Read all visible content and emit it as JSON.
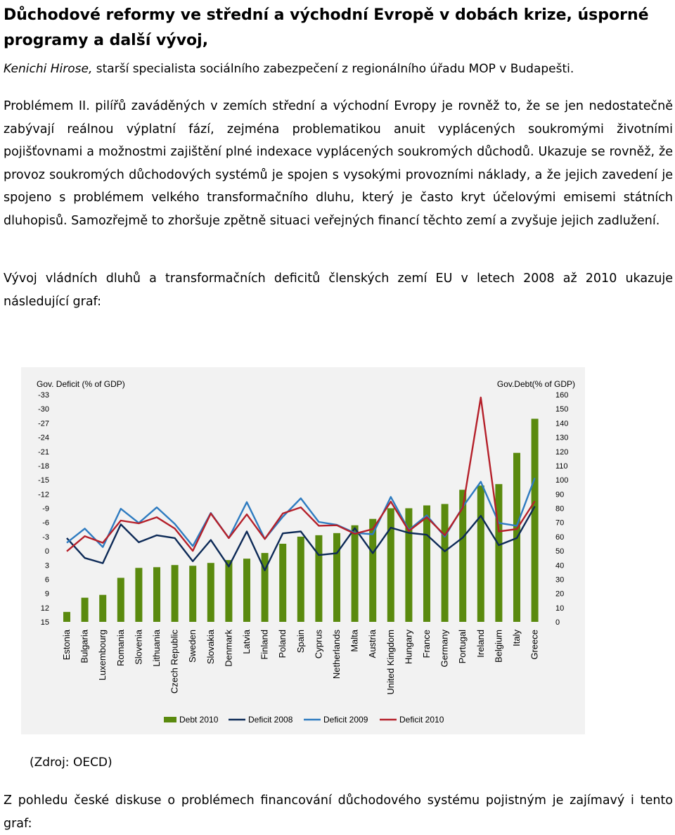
{
  "document": {
    "title": "Důchodové reformy ve střední a východní Evropě v dobách krize, úsporné programy a další vývoj,",
    "author_name": "Kenichi Hirose,",
    "author_role": " starší specialista sociálního zabezpečení z regionálního úřadu MOP v Budapešti.",
    "paragraph1": "Problémem II. pilířů zaváděných v zemích střední a východní Evropy je rovněž to, že se jen nedostatečně zabývají reálnou výplatní fází, zejména problematikou anuit vyplácených soukromými životními pojišťovnami a možnostmi zajištění plné indexace vyplácených soukromých důchodů. Ukazuje se rovněž, že provoz soukromých důchodových systémů je spojen s vysokými provozními náklady, a že jejich zavedení je spojeno s problémem velkého transformačního dluhu, který je často kryt účelovými emisemi státních dluhopisů. Samozřejmě to zhoršuje zpětně situaci veřejných financí těchto zemí a zvyšuje jejich zadlužení.",
    "paragraph2": "Vývoj vládních dluhů a transformačních deficitů členských zemí EU v letech 2008 až 2010 ukazuje následující graf:",
    "source": "(Zdroj: OECD)",
    "paragraph3": "Z pohledu české diskuse o problémech financování důchodového systému pojistným je zajímavý i tento graf:"
  },
  "chart_data": {
    "type": "bar+line",
    "left_axis_title": "Gov. Deficit (% of GDP)",
    "right_axis_title": "Gov.Debt(% of GDP)",
    "left_axis_ticks": [
      "-33",
      "-30",
      "-27",
      "-24",
      "-21",
      "-18",
      "-15",
      "-12",
      "-9",
      "-6",
      "-3",
      "0",
      "3",
      "6",
      "9",
      "12",
      "15"
    ],
    "right_axis_ticks": [
      "160",
      "150",
      "140",
      "130",
      "120",
      "110",
      "100",
      "90",
      "80",
      "70",
      "60",
      "50",
      "40",
      "30",
      "20",
      "10",
      "0"
    ],
    "left_axis_range": [
      15,
      -33
    ],
    "right_axis_range": [
      0,
      160
    ],
    "categories": [
      "Estonia",
      "Bulgaria",
      "Luxembourg",
      "Romania",
      "Slovenia",
      "Lithuania",
      "Czech Republic",
      "Sweden",
      "Slovakia",
      "Denmark",
      "Latvia",
      "Finland",
      "Poland",
      "Spain",
      "Cyprus",
      "Netherlands",
      "Malta",
      "Austria",
      "United Kingdom",
      "Hungary",
      "France",
      "Germany",
      "Portugal",
      "Ireland",
      "Belgium",
      "Italy",
      "Greece"
    ],
    "series": [
      {
        "name": "Debt 2010",
        "axis": "right",
        "color": "#5a8a0e",
        "values": [
          7,
          17,
          19,
          31,
          38,
          38.5,
          40,
          39.5,
          41.5,
          43.5,
          44.5,
          48.5,
          55,
          60,
          61,
          62.5,
          68,
          72.5,
          80,
          80,
          82,
          83,
          93,
          96,
          97,
          119,
          143
        ]
      },
      {
        "name": "Deficit 2008",
        "axis": "left",
        "color": "#0d2a57",
        "values": [
          -2.7,
          1.5,
          2.6,
          -5.6,
          -1.8,
          -3.3,
          -2.7,
          2.2,
          -2.3,
          3.3,
          -4.1,
          4.1,
          -3.7,
          -4.1,
          0.9,
          0.5,
          -4.8,
          0.5,
          -4.9,
          -3.8,
          -3.4,
          0.1,
          -2.8,
          -7.4,
          -1.2,
          -2.7,
          -9.4
        ]
      },
      {
        "name": "Deficit 2009",
        "axis": "left",
        "color": "#2e7bc0",
        "values": [
          -1.7,
          -4.7,
          -0.8,
          -8.9,
          -5.9,
          -9.2,
          -5.7,
          -1.0,
          -8.0,
          -2.7,
          -10.3,
          -2.5,
          -7.2,
          -11.1,
          -6.1,
          -5.5,
          -3.8,
          -3.5,
          -11.4,
          -4.4,
          -7.5,
          -3.0,
          -9.3,
          -14.6,
          -5.9,
          -5.3,
          -15.4
        ]
      },
      {
        "name": "Deficit 2010",
        "axis": "left",
        "color": "#b5202a",
        "values": [
          0.1,
          -3.1,
          -1.7,
          -6.4,
          -5.8,
          -7.1,
          -4.7,
          0.0,
          -7.9,
          -2.7,
          -7.7,
          -2.5,
          -7.9,
          -9.2,
          -5.3,
          -5.4,
          -3.6,
          -4.6,
          -10.4,
          -4.2,
          -7.1,
          -3.3,
          -9.1,
          -32.4,
          -4.1,
          -4.6,
          -10.5
        ]
      }
    ],
    "legend_position": "bottom"
  }
}
